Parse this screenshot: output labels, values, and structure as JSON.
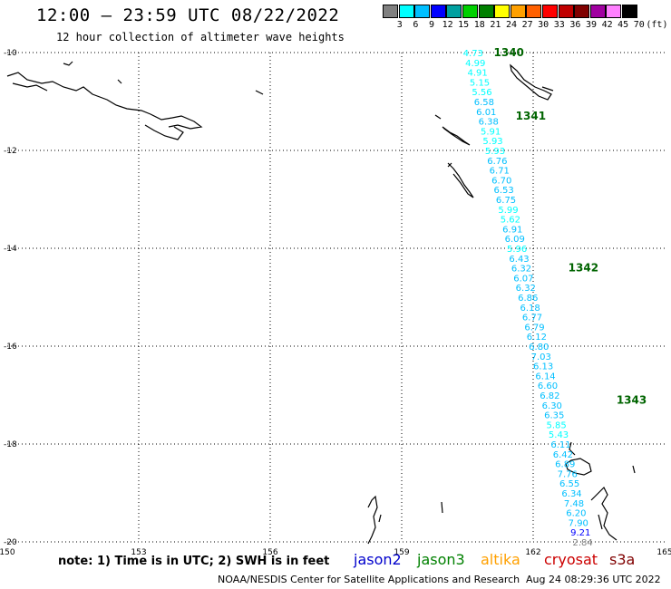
{
  "header": {
    "title": "12:00 – 23:59 UTC 08/22/2022",
    "subtitle": "12 hour collection of altimeter wave heights"
  },
  "legend": {
    "colors": [
      "#808080",
      "#00ffff",
      "#00bfff",
      "#0000ff",
      "#00a0a0",
      "#00d000",
      "#008000",
      "#ffff00",
      "#ffa000",
      "#ff6000",
      "#ff0000",
      "#c00000",
      "#800000",
      "#a000a0",
      "#ff80ff",
      "#000000"
    ],
    "labels": [
      "3",
      "6",
      "9",
      "12",
      "15",
      "18",
      "21",
      "24",
      "27",
      "30",
      "33",
      "36",
      "39",
      "42",
      "45",
      "70",
      "(ft)"
    ]
  },
  "map": {
    "x_ticks": [
      "150",
      "153",
      "156",
      "159",
      "162",
      "165"
    ],
    "y_ticks": [
      "-10",
      "-12",
      "-14",
      "-16",
      "-18",
      "-20"
    ],
    "lon_range": [
      150,
      165
    ],
    "lat_range": [
      -10,
      -20
    ]
  },
  "pass_labels": [
    {
      "text": "1340",
      "lat": -10.0,
      "lon": 161.1
    },
    {
      "text": "1341",
      "lat": -11.3,
      "lon": 161.6
    },
    {
      "text": "1342",
      "lat": -14.4,
      "lon": 162.8
    },
    {
      "text": "1343",
      "lat": -17.1,
      "lon": 163.9
    }
  ],
  "wave_heights": [
    {
      "v": "4.73",
      "lat": -10.0,
      "lon": 160.4,
      "c": "#00ffff"
    },
    {
      "v": "4.99",
      "lat": -10.2,
      "lon": 160.45,
      "c": "#00ffff"
    },
    {
      "v": "4.91",
      "lat": -10.4,
      "lon": 160.5,
      "c": "#00ffff"
    },
    {
      "v": "5.15",
      "lat": -10.6,
      "lon": 160.55,
      "c": "#00ffff"
    },
    {
      "v": "5.56",
      "lat": -10.8,
      "lon": 160.6,
      "c": "#00ffff"
    },
    {
      "v": "6.58",
      "lat": -11.0,
      "lon": 160.65,
      "c": "#00bfff"
    },
    {
      "v": "6.01",
      "lat": -11.2,
      "lon": 160.7,
      "c": "#00bfff"
    },
    {
      "v": "6.38",
      "lat": -11.4,
      "lon": 160.75,
      "c": "#00bfff"
    },
    {
      "v": "5.91",
      "lat": -11.6,
      "lon": 160.8,
      "c": "#00ffff"
    },
    {
      "v": "5.93",
      "lat": -11.8,
      "lon": 160.85,
      "c": "#00ffff"
    },
    {
      "v": "5.93",
      "lat": -12.0,
      "lon": 160.9,
      "c": "#00ffff"
    },
    {
      "v": "6.76",
      "lat": -12.2,
      "lon": 160.95,
      "c": "#00bfff"
    },
    {
      "v": "6.71",
      "lat": -12.4,
      "lon": 161.0,
      "c": "#00bfff"
    },
    {
      "v": "6.70",
      "lat": -12.6,
      "lon": 161.05,
      "c": "#00bfff"
    },
    {
      "v": "6.53",
      "lat": -12.8,
      "lon": 161.1,
      "c": "#00bfff"
    },
    {
      "v": "6.75",
      "lat": -13.0,
      "lon": 161.15,
      "c": "#00bfff"
    },
    {
      "v": "5.99",
      "lat": -13.2,
      "lon": 161.2,
      "c": "#00ffff"
    },
    {
      "v": "5.62",
      "lat": -13.4,
      "lon": 161.25,
      "c": "#00ffff"
    },
    {
      "v": "6.91",
      "lat": -13.6,
      "lon": 161.3,
      "c": "#00bfff"
    },
    {
      "v": "6.09",
      "lat": -13.8,
      "lon": 161.35,
      "c": "#00bfff"
    },
    {
      "v": "5.96",
      "lat": -14.0,
      "lon": 161.4,
      "c": "#00ffff"
    },
    {
      "v": "6.43",
      "lat": -14.2,
      "lon": 161.45,
      "c": "#00bfff"
    },
    {
      "v": "6.32",
      "lat": -14.4,
      "lon": 161.5,
      "c": "#00bfff"
    },
    {
      "v": "6.07",
      "lat": -14.6,
      "lon": 161.55,
      "c": "#00bfff"
    },
    {
      "v": "6.32",
      "lat": -14.8,
      "lon": 161.6,
      "c": "#00bfff"
    },
    {
      "v": "6.86",
      "lat": -15.0,
      "lon": 161.65,
      "c": "#00bfff"
    },
    {
      "v": "6.18",
      "lat": -15.2,
      "lon": 161.7,
      "c": "#00bfff"
    },
    {
      "v": "6.77",
      "lat": -15.4,
      "lon": 161.75,
      "c": "#00bfff"
    },
    {
      "v": "6.79",
      "lat": -15.6,
      "lon": 161.8,
      "c": "#00bfff"
    },
    {
      "v": "6.12",
      "lat": -15.8,
      "lon": 161.85,
      "c": "#00bfff"
    },
    {
      "v": "6.80",
      "lat": -16.0,
      "lon": 161.9,
      "c": "#00bfff"
    },
    {
      "v": "7.03",
      "lat": -16.2,
      "lon": 161.95,
      "c": "#00bfff"
    },
    {
      "v": "6.13",
      "lat": -16.4,
      "lon": 162.0,
      "c": "#00bfff"
    },
    {
      "v": "6.14",
      "lat": -16.6,
      "lon": 162.05,
      "c": "#00bfff"
    },
    {
      "v": "6.60",
      "lat": -16.8,
      "lon": 162.1,
      "c": "#00bfff"
    },
    {
      "v": "6.82",
      "lat": -17.0,
      "lon": 162.15,
      "c": "#00bfff"
    },
    {
      "v": "6.30",
      "lat": -17.2,
      "lon": 162.2,
      "c": "#00bfff"
    },
    {
      "v": "6.35",
      "lat": -17.4,
      "lon": 162.25,
      "c": "#00bfff"
    },
    {
      "v": "5.85",
      "lat": -17.6,
      "lon": 162.3,
      "c": "#00ffff"
    },
    {
      "v": "5.43",
      "lat": -17.8,
      "lon": 162.35,
      "c": "#00ffff"
    },
    {
      "v": "6.11",
      "lat": -18.0,
      "lon": 162.4,
      "c": "#00bfff"
    },
    {
      "v": "6.42",
      "lat": -18.2,
      "lon": 162.45,
      "c": "#00bfff"
    },
    {
      "v": "6.89",
      "lat": -18.4,
      "lon": 162.5,
      "c": "#00bfff"
    },
    {
      "v": "7.76",
      "lat": -18.6,
      "lon": 162.55,
      "c": "#00bfff"
    },
    {
      "v": "6.55",
      "lat": -18.8,
      "lon": 162.6,
      "c": "#00bfff"
    },
    {
      "v": "6.34",
      "lat": -19.0,
      "lon": 162.65,
      "c": "#00bfff"
    },
    {
      "v": "7.48",
      "lat": -19.2,
      "lon": 162.7,
      "c": "#00bfff"
    },
    {
      "v": "6.20",
      "lat": -19.4,
      "lon": 162.75,
      "c": "#00bfff"
    },
    {
      "v": "7.90",
      "lat": -19.6,
      "lon": 162.8,
      "c": "#00bfff"
    },
    {
      "v": "9.21",
      "lat": -19.8,
      "lon": 162.85,
      "c": "#0000ff"
    },
    {
      "v": "2.84",
      "lat": -20.0,
      "lon": 162.9,
      "c": "#808080"
    }
  ],
  "note": "note: 1) Time is in UTC; 2) SWH is in feet",
  "satellites": [
    {
      "name": "jason2",
      "color": "#0000cc"
    },
    {
      "name": "jason3",
      "color": "#008000"
    },
    {
      "name": "altika",
      "color": "#ffa000"
    },
    {
      "name": "cryosat",
      "color": "#cc0000"
    },
    {
      "name": "s3a",
      "color": "#800000"
    }
  ],
  "footer": {
    "credit": "NOAA/NESDIS Center for Satellite Applications and Research",
    "timestamp": "Aug 24 08:29:36 UTC 2022"
  }
}
